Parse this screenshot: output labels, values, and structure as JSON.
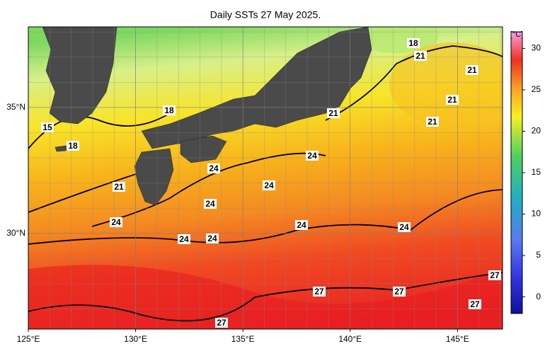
{
  "title": "Daily SSTs 27 May 2025.",
  "xlim": [
    125,
    147.1
  ],
  "ylim": [
    26.2,
    38.2
  ],
  "xticks": [
    {
      "value": 125,
      "label": "125°E"
    },
    {
      "value": 130,
      "label": "130°E"
    },
    {
      "value": 135,
      "label": "135°E"
    },
    {
      "value": 140,
      "label": "140°E"
    },
    {
      "value": 145,
      "label": "145°E"
    }
  ],
  "yticks": [
    {
      "value": 30,
      "label": "30°N"
    },
    {
      "value": 35,
      "label": "35°N"
    }
  ],
  "colorbar": {
    "unit": "[°C]",
    "range": [
      -2,
      32
    ],
    "ticks": [
      30,
      25,
      20,
      15,
      10,
      5,
      0
    ]
  },
  "contour_labels": [
    18,
    21,
    21,
    21,
    21,
    21,
    18,
    15,
    18,
    24,
    24,
    24,
    21,
    24,
    24,
    24,
    24,
    24,
    24,
    27,
    27,
    27,
    27,
    27
  ]
}
